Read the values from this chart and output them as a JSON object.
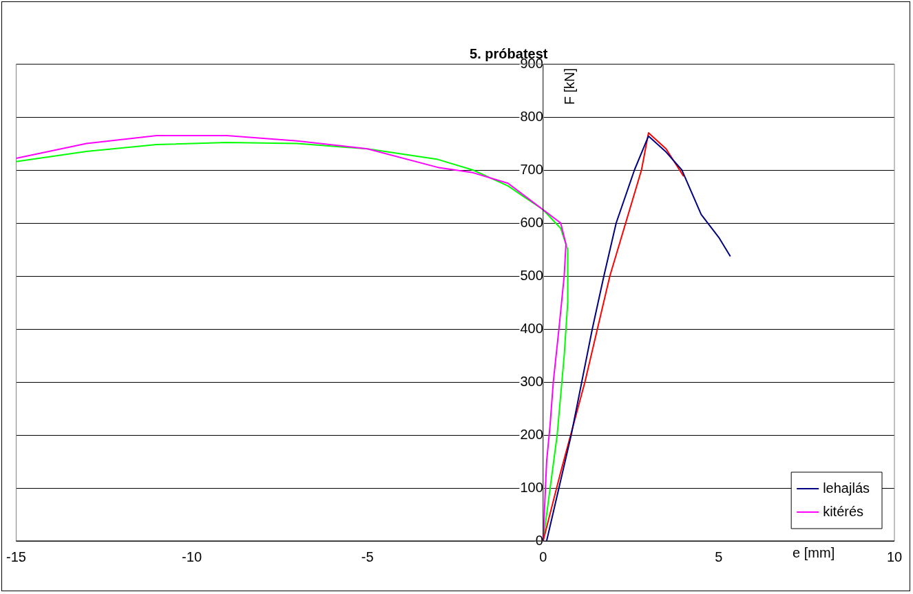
{
  "chart_data": {
    "type": "line",
    "title": "5. próbatest",
    "xlabel": "e [mm]",
    "ylabel": "F [kN]",
    "xlim": [
      -15,
      10
    ],
    "xticks": [
      -15,
      -10,
      -5,
      0,
      5,
      10
    ],
    "ylim": [
      0,
      900
    ],
    "yticks": [
      0,
      100,
      200,
      300,
      400,
      500,
      600,
      700,
      800,
      900
    ],
    "grid": "y",
    "legend": "bottom right",
    "marker": "none",
    "series": [
      {
        "name": "lehajlás",
        "color": "#000080",
        "x": [
          0.1,
          0.45,
          0.8,
          1.1,
          1.4,
          1.73,
          2.08,
          2.6,
          3.0,
          3.5,
          3.95,
          4.5,
          5.0,
          5.33
        ],
        "values": [
          0,
          100,
          200,
          300,
          400,
          500,
          600,
          700,
          764,
          734,
          700,
          616,
          573,
          537
        ]
      },
      {
        "name": "kitérés",
        "color": "#ff00ff",
        "x": [
          0,
          0.1,
          0.2,
          0.29,
          0.45,
          0.6,
          0.65,
          0.5,
          0,
          -1,
          -2,
          -2.5,
          -3,
          -5,
          -7,
          -9,
          -11,
          -13,
          -15
        ],
        "values": [
          0,
          150,
          220,
          300,
          400,
          500,
          560,
          600,
          625,
          675,
          695,
          700,
          705,
          740,
          755,
          765,
          765,
          750,
          722
        ]
      },
      {
        "color": "#ff0000",
        "x": [
          0,
          0.5,
          1.19,
          1.9,
          2.8,
          3.0,
          3.5,
          4.0
        ],
        "values": [
          0,
          130,
          300,
          500,
          700,
          770,
          740,
          688
        ]
      },
      {
        "color": "#00ff00",
        "x": [
          0,
          0.2,
          0.4,
          0.6,
          0.7,
          0.7,
          0.5,
          0,
          -1,
          -2,
          -3,
          -5,
          -7,
          -9,
          -11,
          -13,
          -15
        ],
        "values": [
          0,
          100,
          200,
          350,
          450,
          550,
          590,
          625,
          670,
          700,
          720,
          740,
          750,
          752,
          748,
          735,
          716
        ]
      }
    ]
  }
}
